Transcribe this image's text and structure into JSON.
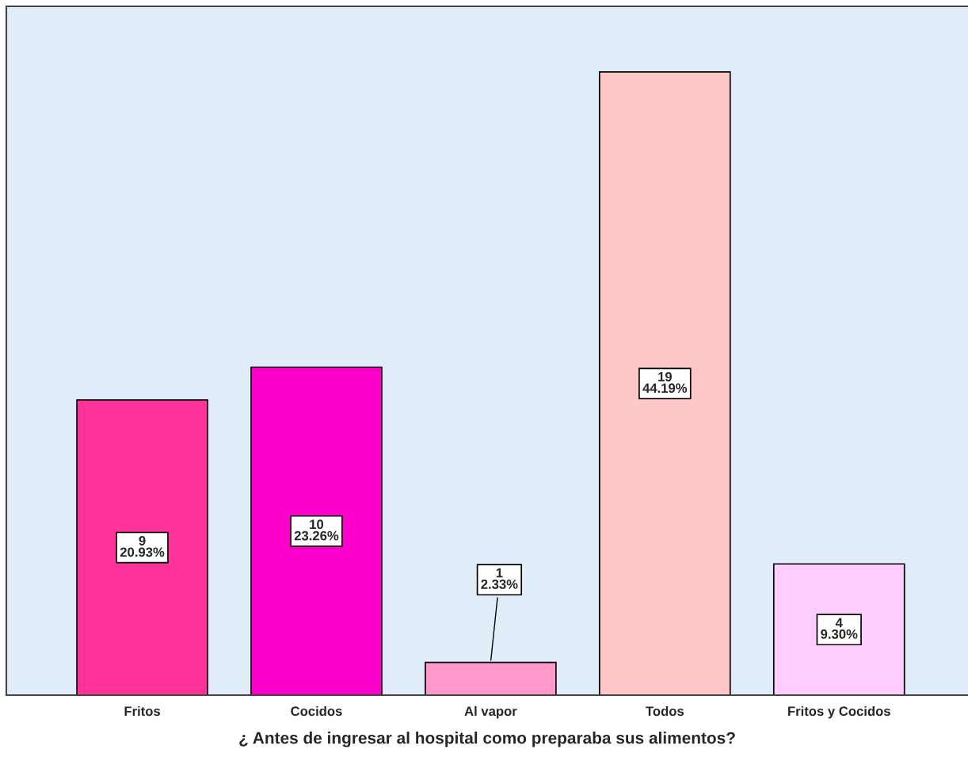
{
  "chart_data": {
    "type": "bar",
    "xlabel": "¿ Antes de ingresar al hospital como preparaba sus alimentos?",
    "categories": [
      "Fritos",
      "Cocidos",
      "Al vapor",
      "Todos",
      "Fritos y Cocidos"
    ],
    "values": [
      9,
      10,
      1,
      19,
      4
    ],
    "colors": [
      "#ff3399",
      "#ff00cc",
      "#ff99cc",
      "#ffc8c8",
      "#ffccff"
    ],
    "value_labels": [
      "9\n20.93%",
      "10\n23.26%",
      "1\n2.33%",
      "19\n44.19%",
      "4\n9.30%"
    ],
    "ylim": [
      0,
      21
    ],
    "tick_labels": "x",
    "grid": false,
    "legend": false
  }
}
